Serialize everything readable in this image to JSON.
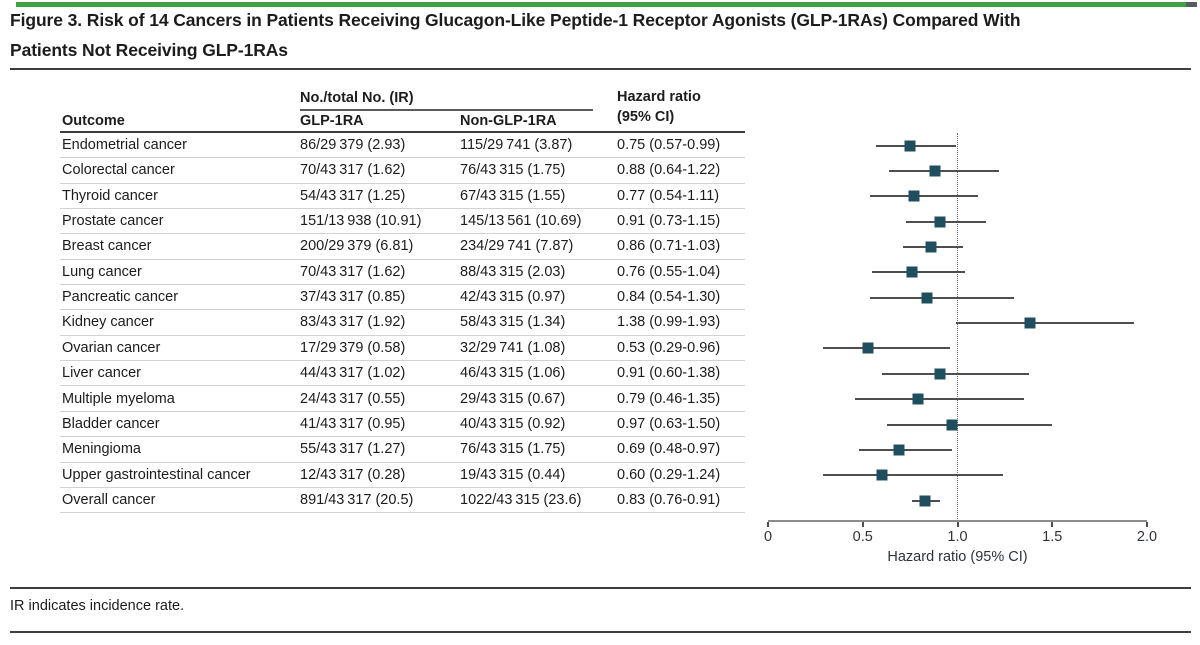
{
  "figure": {
    "title": "Figure 3. Risk of 14 Cancers in Patients Receiving Glucagon-Like Peptide-1 Receptor Agonists (GLP-1RAs) Compared With\nPatients Not Receiving GLP-1RAs",
    "footnote": "IR indicates incidence rate."
  },
  "colors": {
    "accent_green": "#3fa245",
    "accent_cap": "#565b5e",
    "marker_teal": "#1f4f5e",
    "ci_line": "#4e4e4e",
    "rule_dark": "#3d3d3d",
    "hairline": "#d2d2d2"
  },
  "table": {
    "group_header": "No./total No. (IR)",
    "columns": {
      "outcome": "Outcome",
      "glp1ra": "GLP-1RA",
      "non_glp1ra": "Non-GLP-1RA",
      "hazard_ratio": "Hazard ratio\n(95% CI)"
    },
    "rows": [
      {
        "outcome": "Endometrial cancer",
        "glp1ra": "86/29 379 (2.93)",
        "non_glp1ra": "115/29 741 (3.87)",
        "hr_ci": "0.75 (0.57-0.99)"
      },
      {
        "outcome": "Colorectal cancer",
        "glp1ra": "70/43 317 (1.62)",
        "non_glp1ra": "76/43 315 (1.75)",
        "hr_ci": "0.88 (0.64-1.22)"
      },
      {
        "outcome": "Thyroid cancer",
        "glp1ra": "54/43 317 (1.25)",
        "non_glp1ra": "67/43 315 (1.55)",
        "hr_ci": "0.77 (0.54-1.11)"
      },
      {
        "outcome": "Prostate cancer",
        "glp1ra": "151/13 938 (10.91)",
        "non_glp1ra": "145/13 561 (10.69)",
        "hr_ci": "0.91 (0.73-1.15)"
      },
      {
        "outcome": "Breast cancer",
        "glp1ra": "200/29 379 (6.81)",
        "non_glp1ra": "234/29 741 (7.87)",
        "hr_ci": "0.86 (0.71-1.03)"
      },
      {
        "outcome": "Lung cancer",
        "glp1ra": "70/43 317 (1.62)",
        "non_glp1ra": "88/43 315 (2.03)",
        "hr_ci": "0.76 (0.55-1.04)"
      },
      {
        "outcome": "Pancreatic cancer",
        "glp1ra": "37/43 317 (0.85)",
        "non_glp1ra": "42/43 315 (0.97)",
        "hr_ci": "0.84 (0.54-1.30)"
      },
      {
        "outcome": "Kidney cancer",
        "glp1ra": "83/43 317 (1.92)",
        "non_glp1ra": "58/43 315 (1.34)",
        "hr_ci": "1.38 (0.99-1.93)"
      },
      {
        "outcome": "Ovarian cancer",
        "glp1ra": "17/29 379 (0.58)",
        "non_glp1ra": "32/29 741 (1.08)",
        "hr_ci": "0.53 (0.29-0.96)"
      },
      {
        "outcome": "Liver cancer",
        "glp1ra": "44/43 317 (1.02)",
        "non_glp1ra": "46/43 315 (1.06)",
        "hr_ci": "0.91 (0.60-1.38)"
      },
      {
        "outcome": "Multiple myeloma",
        "glp1ra": "24/43 317 (0.55)",
        "non_glp1ra": "29/43 315 (0.67)",
        "hr_ci": "0.79 (0.46-1.35)"
      },
      {
        "outcome": "Bladder cancer",
        "glp1ra": "41/43 317 (0.95)",
        "non_glp1ra": "40/43 315 (0.92)",
        "hr_ci": "0.97 (0.63-1.50)"
      },
      {
        "outcome": "Meningioma",
        "glp1ra": "55/43 317 (1.27)",
        "non_glp1ra": "76/43 315 (1.75)",
        "hr_ci": "0.69 (0.48-0.97)"
      },
      {
        "outcome": "Upper gastrointestinal cancer",
        "glp1ra": "12/43 317 (0.28)",
        "non_glp1ra": "19/43 315 (0.44)",
        "hr_ci": "0.60 (0.29-1.24)"
      },
      {
        "outcome": "Overall cancer",
        "glp1ra": "891/43 317 (20.5)",
        "non_glp1ra": "1022/43 315 (23.6)",
        "hr_ci": "0.83 (0.76-0.91)"
      }
    ]
  },
  "chart_data": {
    "type": "forest",
    "title": "Risk of 14 Cancers in Patients Receiving GLP-1RAs Compared With Patients Not Receiving GLP-1RAs",
    "xlabel": "Hazard ratio (95% CI)",
    "xlim": [
      0,
      2.0
    ],
    "xticks": [
      {
        "value": 0,
        "label": "0"
      },
      {
        "value": 0.5,
        "label": "0.5"
      },
      {
        "value": 1.0,
        "label": "1.0"
      },
      {
        "value": 1.5,
        "label": "1.5"
      },
      {
        "value": 2.0,
        "label": "2.0"
      }
    ],
    "reference_line": 1.0,
    "grid": false,
    "legend": false,
    "rows": [
      {
        "outcome": "Endometrial cancer",
        "hr": 0.75,
        "lo": 0.57,
        "hi": 0.99
      },
      {
        "outcome": "Colorectal cancer",
        "hr": 0.88,
        "lo": 0.64,
        "hi": 1.22
      },
      {
        "outcome": "Thyroid cancer",
        "hr": 0.77,
        "lo": 0.54,
        "hi": 1.11
      },
      {
        "outcome": "Prostate cancer",
        "hr": 0.91,
        "lo": 0.73,
        "hi": 1.15
      },
      {
        "outcome": "Breast cancer",
        "hr": 0.86,
        "lo": 0.71,
        "hi": 1.03
      },
      {
        "outcome": "Lung cancer",
        "hr": 0.76,
        "lo": 0.55,
        "hi": 1.04
      },
      {
        "outcome": "Pancreatic cancer",
        "hr": 0.84,
        "lo": 0.54,
        "hi": 1.3
      },
      {
        "outcome": "Kidney cancer",
        "hr": 1.38,
        "lo": 0.99,
        "hi": 1.93
      },
      {
        "outcome": "Ovarian cancer",
        "hr": 0.53,
        "lo": 0.29,
        "hi": 0.96
      },
      {
        "outcome": "Liver cancer",
        "hr": 0.91,
        "lo": 0.6,
        "hi": 1.38
      },
      {
        "outcome": "Multiple myeloma",
        "hr": 0.79,
        "lo": 0.46,
        "hi": 1.35
      },
      {
        "outcome": "Bladder cancer",
        "hr": 0.97,
        "lo": 0.63,
        "hi": 1.5
      },
      {
        "outcome": "Meningioma",
        "hr": 0.69,
        "lo": 0.48,
        "hi": 0.97
      },
      {
        "outcome": "Upper gastrointestinal cancer",
        "hr": 0.6,
        "lo": 0.29,
        "hi": 1.24
      },
      {
        "outcome": "Overall cancer",
        "hr": 0.83,
        "lo": 0.76,
        "hi": 0.91
      }
    ]
  }
}
